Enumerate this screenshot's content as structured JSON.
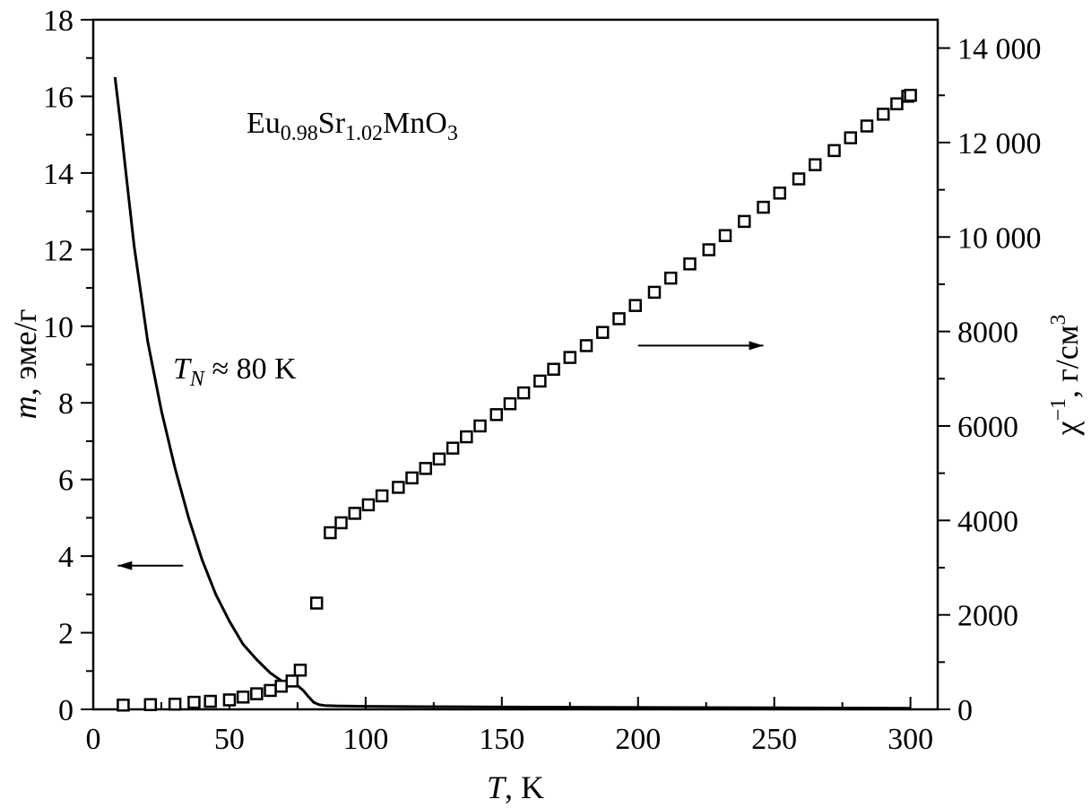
{
  "chart_data": {
    "type": "scatter",
    "annotations": {
      "formula": {
        "eu": "Eu",
        "eu_sub": "0.98",
        "sr": "Sr",
        "sr_sub": "1.02",
        "mn": "MnO",
        "o_sub": "3"
      },
      "tn": {
        "t": "T",
        "sub": "N",
        "rest": " ≈ 80 K"
      }
    },
    "x_axis": {
      "label_italic": "T",
      "label_rest": ", K",
      "range": [
        0,
        310
      ],
      "ticks": [
        0,
        50,
        100,
        150,
        200,
        250,
        300
      ],
      "tick_labels": [
        "0",
        "50",
        "100",
        "150",
        "200",
        "250",
        "300"
      ],
      "minor_step": 25
    },
    "y_left": {
      "label_italic": "m",
      "label_rest": ", эме/г",
      "range": [
        0,
        18
      ],
      "ticks": [
        0,
        2,
        4,
        6,
        8,
        10,
        12,
        14,
        16,
        18
      ],
      "tick_labels": [
        "0",
        "2",
        "4",
        "6",
        "8",
        "10",
        "12",
        "14",
        "16",
        "18"
      ],
      "minor_step": 1
    },
    "y_right": {
      "label_main": "χ",
      "label_sup": "−1",
      "label_mid": ", г/см",
      "label_sup2": "3",
      "range": [
        0,
        14600
      ],
      "ticks": [
        0,
        2000,
        4000,
        6000,
        8000,
        10000,
        12000,
        14000
      ],
      "tick_labels": [
        "0",
        "2000",
        "4000",
        "6000",
        "8000",
        "10 000",
        "12 000",
        "14 000"
      ],
      "minor_step": 1000
    },
    "series": [
      {
        "axis": "left",
        "style": "line",
        "x": [
          8,
          10,
          12,
          15,
          20,
          25,
          30,
          35,
          40,
          45,
          50,
          55,
          60,
          65,
          70,
          73,
          75,
          77,
          79,
          81,
          83,
          85,
          90,
          100,
          120,
          150,
          200,
          250,
          300
        ],
        "y": [
          16.5,
          15.3,
          14.0,
          12.1,
          9.6,
          7.8,
          6.3,
          5.0,
          3.9,
          3.0,
          2.3,
          1.7,
          1.3,
          0.95,
          0.7,
          0.65,
          0.62,
          0.5,
          0.33,
          0.18,
          0.12,
          0.1,
          0.09,
          0.08,
          0.07,
          0.06,
          0.05,
          0.04,
          0.03
        ]
      },
      {
        "axis": "right",
        "style": "open-square",
        "x": [
          11,
          21,
          30,
          37,
          43,
          50,
          55,
          60,
          65,
          69,
          73,
          76,
          82,
          87,
          91,
          96,
          101,
          106,
          112,
          117,
          122,
          127,
          132,
          137,
          142,
          148,
          153,
          158,
          164,
          169,
          175,
          181,
          187,
          193,
          199,
          206,
          212,
          219,
          226,
          232,
          239,
          246,
          252,
          259,
          265,
          272,
          278,
          284,
          290,
          295,
          299,
          300
        ],
        "y": [
          90,
          100,
          110,
          150,
          170,
          200,
          260,
          330,
          400,
          490,
          600,
          830,
          2250,
          3740,
          3950,
          4150,
          4330,
          4520,
          4700,
          4900,
          5100,
          5300,
          5530,
          5770,
          6000,
          6240,
          6470,
          6700,
          6950,
          7200,
          7450,
          7700,
          7980,
          8270,
          8550,
          8830,
          9130,
          9430,
          9730,
          10030,
          10330,
          10630,
          10930,
          11230,
          11530,
          11830,
          12100,
          12350,
          12600,
          12820,
          12980,
          13000
        ]
      }
    ],
    "arrows": [
      {
        "axis": "left",
        "from": [
          33,
          3.75
        ],
        "to": [
          9,
          3.75
        ]
      },
      {
        "axis": "right",
        "from": [
          200,
          7700
        ],
        "to": [
          246,
          7700
        ]
      }
    ]
  }
}
